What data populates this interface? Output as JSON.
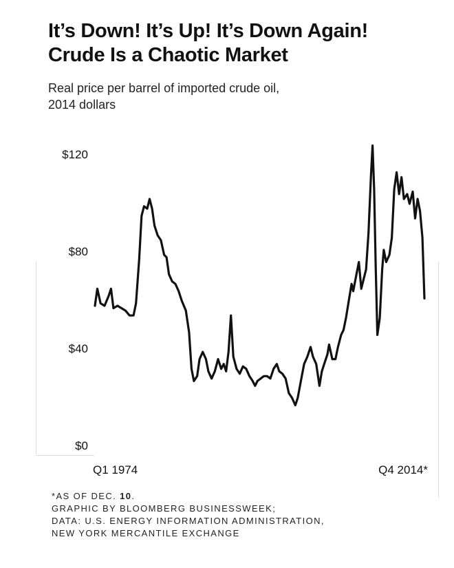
{
  "title_line1": "It’s Down! It’s Up! It’s Down Again!",
  "title_line2": "Crude Is a Chaotic Market",
  "subtitle_line1": "Real price per barrel of imported crude oil,",
  "subtitle_line2": "2014 dollars",
  "chart_data": {
    "type": "line",
    "title": "It’s Down! It’s Up! It’s Down Again! Crude Is a Chaotic Market",
    "subtitle": "Real price per barrel of imported crude oil, 2014 dollars",
    "xlabel": "",
    "ylabel": "",
    "x_start_label": "Q1 1974",
    "x_end_label": "Q4 2014*",
    "x_range": [
      "1974 Q1",
      "2014 Q4"
    ],
    "ylim": [
      0,
      120
    ],
    "yticks": [
      0,
      40,
      80,
      120
    ],
    "ytick_labels": [
      "$0",
      "$40",
      "$80",
      "$120"
    ],
    "grid": false,
    "series": [
      {
        "name": "",
        "color": "#111111",
        "points": [
          [
            1974.0,
            57
          ],
          [
            1974.3,
            64
          ],
          [
            1974.7,
            58
          ],
          [
            1975.2,
            57
          ],
          [
            1975.7,
            61
          ],
          [
            1976.0,
            64
          ],
          [
            1976.3,
            56
          ],
          [
            1976.8,
            57
          ],
          [
            1977.3,
            56
          ],
          [
            1977.8,
            55
          ],
          [
            1978.3,
            53
          ],
          [
            1978.8,
            53
          ],
          [
            1979.1,
            58
          ],
          [
            1979.5,
            76
          ],
          [
            1979.8,
            94
          ],
          [
            1980.1,
            98
          ],
          [
            1980.5,
            97
          ],
          [
            1980.8,
            101
          ],
          [
            1981.1,
            97
          ],
          [
            1981.4,
            90
          ],
          [
            1981.8,
            86
          ],
          [
            1982.2,
            84
          ],
          [
            1982.6,
            78
          ],
          [
            1982.9,
            77
          ],
          [
            1983.2,
            70
          ],
          [
            1983.6,
            67
          ],
          [
            1984.0,
            66
          ],
          [
            1984.4,
            63
          ],
          [
            1984.8,
            59
          ],
          [
            1985.3,
            55
          ],
          [
            1985.7,
            46
          ],
          [
            1986.0,
            31
          ],
          [
            1986.3,
            26
          ],
          [
            1986.7,
            28
          ],
          [
            1987.0,
            35
          ],
          [
            1987.4,
            38
          ],
          [
            1987.8,
            35
          ],
          [
            1988.1,
            30
          ],
          [
            1988.5,
            27
          ],
          [
            1988.9,
            30
          ],
          [
            1989.3,
            35
          ],
          [
            1989.7,
            31
          ],
          [
            1990.0,
            33
          ],
          [
            1990.3,
            30
          ],
          [
            1990.6,
            38
          ],
          [
            1990.9,
            53
          ],
          [
            1991.2,
            36
          ],
          [
            1991.6,
            31
          ],
          [
            1992.0,
            29
          ],
          [
            1992.4,
            32
          ],
          [
            1992.8,
            31
          ],
          [
            1993.2,
            28
          ],
          [
            1993.6,
            26
          ],
          [
            1993.9,
            24
          ],
          [
            1994.2,
            26
          ],
          [
            1994.6,
            27
          ],
          [
            1995.0,
            28
          ],
          [
            1995.4,
            28
          ],
          [
            1995.8,
            27
          ],
          [
            1996.2,
            31
          ],
          [
            1996.6,
            33
          ],
          [
            1996.9,
            30
          ],
          [
            1997.3,
            29
          ],
          [
            1997.7,
            27
          ],
          [
            1998.1,
            21
          ],
          [
            1998.5,
            19
          ],
          [
            1998.9,
            16
          ],
          [
            1999.2,
            19
          ],
          [
            1999.6,
            26
          ],
          [
            2000.0,
            33
          ],
          [
            2000.4,
            36
          ],
          [
            2000.8,
            40
          ],
          [
            2001.1,
            36
          ],
          [
            2001.5,
            33
          ],
          [
            2001.9,
            24
          ],
          [
            2002.2,
            30
          ],
          [
            2002.6,
            34
          ],
          [
            2002.9,
            37
          ],
          [
            2003.1,
            41
          ],
          [
            2003.5,
            35
          ],
          [
            2003.9,
            35
          ],
          [
            2004.2,
            40
          ],
          [
            2004.6,
            45
          ],
          [
            2004.9,
            47
          ],
          [
            2005.2,
            52
          ],
          [
            2005.6,
            60
          ],
          [
            2005.9,
            66
          ],
          [
            2006.1,
            63
          ],
          [
            2006.5,
            70
          ],
          [
            2006.8,
            75
          ],
          [
            2007.1,
            64
          ],
          [
            2007.4,
            68
          ],
          [
            2007.7,
            72
          ],
          [
            2008.0,
            87
          ],
          [
            2008.3,
            110
          ],
          [
            2008.5,
            123
          ],
          [
            2008.7,
            105
          ],
          [
            2008.9,
            73
          ],
          [
            2009.1,
            45
          ],
          [
            2009.4,
            52
          ],
          [
            2009.7,
            72
          ],
          [
            2009.9,
            80
          ],
          [
            2010.2,
            75
          ],
          [
            2010.6,
            78
          ],
          [
            2010.9,
            85
          ],
          [
            2011.2,
            105
          ],
          [
            2011.5,
            112
          ],
          [
            2011.8,
            103
          ],
          [
            2012.1,
            110
          ],
          [
            2012.4,
            101
          ],
          [
            2012.8,
            103
          ],
          [
            2013.1,
            99
          ],
          [
            2013.5,
            104
          ],
          [
            2013.8,
            93
          ],
          [
            2014.1,
            101
          ],
          [
            2014.4,
            96
          ],
          [
            2014.7,
            85
          ],
          [
            2014.95,
            60
          ]
        ]
      }
    ]
  },
  "footnotes": {
    "line1_prefix": "*AS OF DEC. ",
    "line1_number": "10",
    "line1_suffix": ".",
    "line2": "GRAPHIC BY BLOOMBERG BUSINESSWEEK;",
    "line3": "DATA: U.S. ENERGY INFORMATION ADMINISTRATION,",
    "line4": "NEW YORK MERCANTILE EXCHANGE"
  },
  "colors": {
    "line": "#111111",
    "text": "#111111",
    "frame": "#dddddd"
  }
}
